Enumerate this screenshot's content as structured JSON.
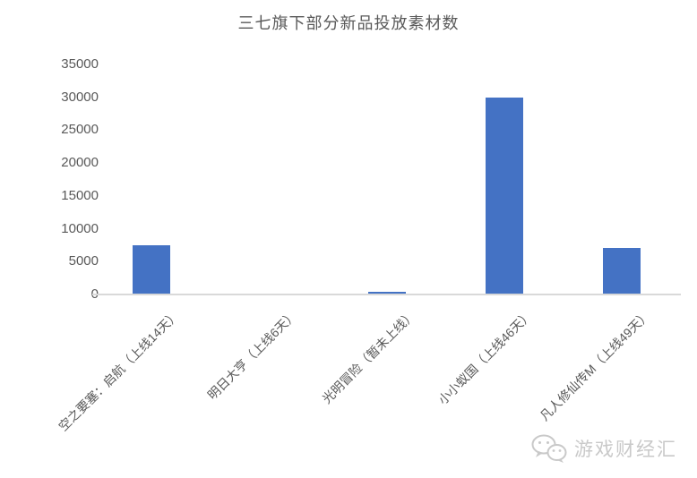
{
  "chart_data": {
    "type": "bar",
    "title": "三七旗下部分新品投放素材数",
    "categories": [
      "空之要塞：启航（上线14天）",
      "明日大亨（上线6天）",
      "光明冒险（暂未上线）",
      "小小蚁国（上线46天）",
      "凡人修仙传M（上线49天）"
    ],
    "values": [
      7500,
      0,
      400,
      30000,
      7100
    ],
    "xlabel": "",
    "ylabel": "",
    "ylim": [
      0,
      35000
    ],
    "yticks": [
      0,
      5000,
      10000,
      15000,
      20000,
      25000,
      30000,
      35000
    ],
    "grid": false,
    "legend": "none",
    "bar_color": "#4472C4",
    "axis_line_color": "#D9D9D9",
    "text_color": "#595959"
  },
  "watermark": {
    "text": "游戏财经汇",
    "icon": "wechat-bubbles-icon",
    "color": "#C9C9C9"
  }
}
